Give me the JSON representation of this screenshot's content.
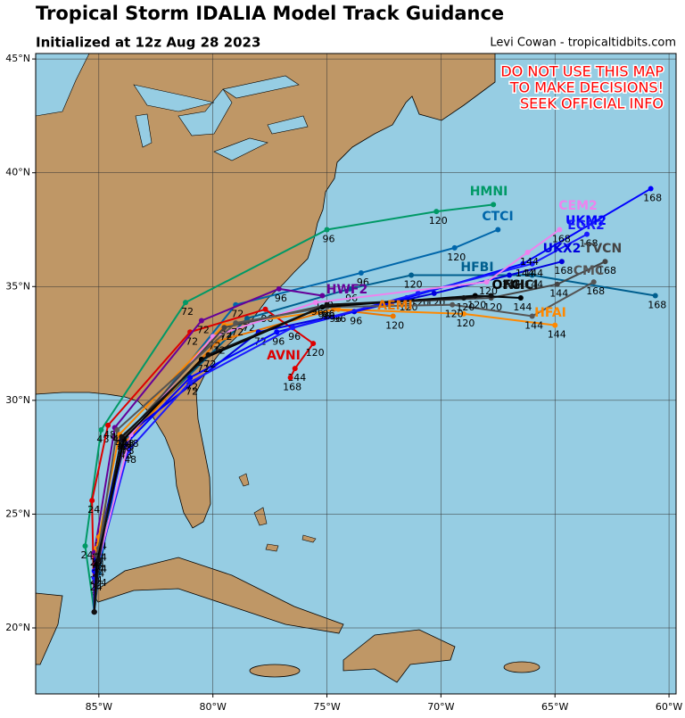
{
  "header": {
    "title": "Tropical Storm IDALIA Model Track Guidance",
    "subtitle": "Initialized at 12z Aug 28 2023",
    "credit": "Levi Cowan - tropicaltidbits.com"
  },
  "warning": [
    "DO NOT USE THIS MAP",
    "TO MAKE DECISIONS!",
    "SEEK OFFICIAL INFO"
  ],
  "map": {
    "lon_range": [
      -87.77,
      -59.69
    ],
    "lat_range": [
      17.1,
      45.24
    ],
    "lon_ticks": [
      {
        "value": -85,
        "label": "85°W"
      },
      {
        "value": -80,
        "label": "80°W"
      },
      {
        "value": -75,
        "label": "75°W"
      },
      {
        "value": -70,
        "label": "70°W"
      },
      {
        "value": -65,
        "label": "65°W"
      },
      {
        "value": -60,
        "label": "60°W"
      }
    ],
    "lat_ticks": [
      {
        "value": 20,
        "label": "20°N"
      },
      {
        "value": 25,
        "label": "25°N"
      },
      {
        "value": 30,
        "label": "30°N"
      },
      {
        "value": 35,
        "label": "35°N"
      },
      {
        "value": 40,
        "label": "40°N"
      },
      {
        "value": 45,
        "label": "45°N"
      }
    ]
  },
  "tracks": [
    {
      "name": "HMNI",
      "color": "#009966",
      "lon": [
        -85.2,
        -85.6,
        -84.9,
        -81.2,
        -75.0,
        -70.2,
        -67.7
      ],
      "lat": [
        20.7,
        23.6,
        28.7,
        34.3,
        37.5,
        38.3,
        38.6
      ],
      "hours": [
        null,
        24,
        48,
        72,
        96,
        120,
        null
      ]
    },
    {
      "name": "CTCI",
      "color": "#0066aa",
      "lon": [
        -85.2,
        -85.0,
        -84.0,
        -79.0,
        -73.5,
        -69.4,
        -67.5
      ],
      "lat": [
        20.7,
        22.4,
        28.0,
        34.2,
        35.6,
        36.7,
        37.5
      ],
      "hours": [
        null,
        24,
        48,
        72,
        96,
        120,
        null
      ]
    },
    {
      "name": "HFBI",
      "color": "#005f8f",
      "lon": [
        -85.2,
        -85.1,
        -83.8,
        -78.5,
        -74.0,
        -71.3,
        -66.0,
        -60.6
      ],
      "lat": [
        20.7,
        23.0,
        28.4,
        33.6,
        34.9,
        35.5,
        35.5,
        34.6
      ],
      "hours": [
        null,
        24,
        48,
        72,
        96,
        120,
        144,
        168
      ]
    },
    {
      "name": "AVNI",
      "color": "#dd0000",
      "lon": [
        -85.2,
        -85.3,
        -84.6,
        -81.0,
        -77.7,
        -75.6,
        -76.4,
        -76.6
      ],
      "lat": [
        20.7,
        25.6,
        28.9,
        33.0,
        34.0,
        32.5,
        31.4,
        31.0
      ],
      "hours": [
        null,
        24,
        48,
        72,
        96,
        120,
        144,
        168
      ]
    },
    {
      "name": "HWF2",
      "color": "#660099",
      "lon": [
        -85.2,
        -85.2,
        -84.3,
        -80.5,
        -77.1,
        -75.2
      ],
      "lat": [
        20.7,
        23.3,
        28.8,
        33.5,
        34.9,
        34.6
      ],
      "hours": [
        null,
        24,
        48,
        72,
        96,
        120
      ]
    },
    {
      "name": "AEMI",
      "color": "#ee7700",
      "lon": [
        -85.2,
        -85.0,
        -83.8,
        -79.8,
        -74.7,
        -72.1
      ],
      "lat": [
        20.7,
        24.0,
        28.2,
        32.6,
        34.0,
        33.7
      ],
      "hours": [
        null,
        24,
        48,
        72,
        96,
        120
      ]
    },
    {
      "name": "HFAI",
      "color": "#ff8800",
      "lon": [
        -85.2,
        -85.1,
        -84.1,
        -79.5,
        -74.5,
        -69.0,
        -65.0
      ],
      "lat": [
        20.7,
        23.5,
        28.5,
        33.3,
        34.0,
        33.8,
        33.3
      ],
      "hours": [
        null,
        24,
        48,
        72,
        96,
        120,
        144
      ]
    },
    {
      "name": "UKX2",
      "color": "#0000dd",
      "lon": [
        -85.2,
        -85.1,
        -84.0,
        -78.0,
        -73.8,
        -70.3,
        -67.0,
        -64.7
      ],
      "lat": [
        20.7,
        23.0,
        28.3,
        33.0,
        33.9,
        34.7,
        35.5,
        36.1
      ],
      "hours": [
        null,
        24,
        48,
        72,
        96,
        120,
        144,
        168
      ]
    },
    {
      "name": "UKM2",
      "color": "#0000ff",
      "lon": [
        -85.2,
        -85.2,
        -83.9,
        -81.0,
        -77.2,
        -71.5,
        -66.4,
        -60.8
      ],
      "lat": [
        20.7,
        22.5,
        28.0,
        31.0,
        33.0,
        34.5,
        36.0,
        39.3
      ],
      "hours": [
        null,
        24,
        48,
        72,
        96,
        120,
        144,
        168
      ]
    },
    {
      "name": "EGR2",
      "color": "#1a1aff",
      "lon": [
        -85.2,
        -85.2,
        -83.7,
        -81.0,
        -76.5,
        -71.0,
        -66.0,
        -63.6
      ],
      "lat": [
        20.7,
        22.2,
        27.8,
        30.8,
        33.2,
        34.7,
        36.0,
        37.3
      ],
      "hours": [
        null,
        24,
        48,
        72,
        96,
        120,
        144,
        168
      ]
    },
    {
      "name": "CEM2",
      "color": "#ee82ee",
      "lon": [
        -85.2,
        -85.0,
        -83.6,
        -80.0,
        -75.5,
        -68.0,
        -66.2,
        -64.8
      ],
      "lat": [
        20.7,
        23.0,
        28.5,
        32.8,
        34.3,
        35.2,
        36.5,
        37.5
      ],
      "hours": [
        null,
        24,
        48,
        72,
        96,
        120,
        144,
        168
      ]
    },
    {
      "name": "TVCN",
      "color": "#444444",
      "lon": [
        -85.2,
        -85.1,
        -83.8,
        -79.5,
        -75.0,
        -67.8,
        -64.9,
        -62.8
      ],
      "lat": [
        20.7,
        23.2,
        28.5,
        33.2,
        34.2,
        34.5,
        35.1,
        36.1
      ],
      "hours": [
        null,
        24,
        48,
        72,
        96,
        120,
        144,
        168
      ]
    },
    {
      "name": "CMC",
      "color": "#555555",
      "lon": [
        -85.2,
        -85.0,
        -84.2,
        -79.0,
        -75.0,
        -69.5,
        -66.0,
        -63.3
      ],
      "lat": [
        20.7,
        23.5,
        28.7,
        33.4,
        34.1,
        34.2,
        33.7,
        35.2
      ],
      "hours": [
        null,
        24,
        48,
        72,
        96,
        120,
        144,
        168
      ]
    },
    {
      "name": "OFCI",
      "color": "#000000",
      "lon": [
        -85.2,
        -85.1,
        -83.9,
        -80.5,
        -75.2,
        -68.5,
        -66.5
      ],
      "lat": [
        20.7,
        22.8,
        28.3,
        31.8,
        34.1,
        34.6,
        34.5
      ],
      "hours": [
        null,
        24,
        48,
        72,
        96,
        120,
        144
      ]
    },
    {
      "name": "NHCI",
      "color": "#111111",
      "lon": [
        -85.2,
        -85.0,
        -84.0,
        -80.2,
        -75.0,
        -69.0,
        -67.8
      ],
      "lat": [
        20.7,
        23.0,
        28.4,
        32.0,
        34.2,
        34.5,
        34.6
      ],
      "hours": [
        null,
        24,
        48,
        72,
        96,
        120,
        null
      ]
    }
  ]
}
